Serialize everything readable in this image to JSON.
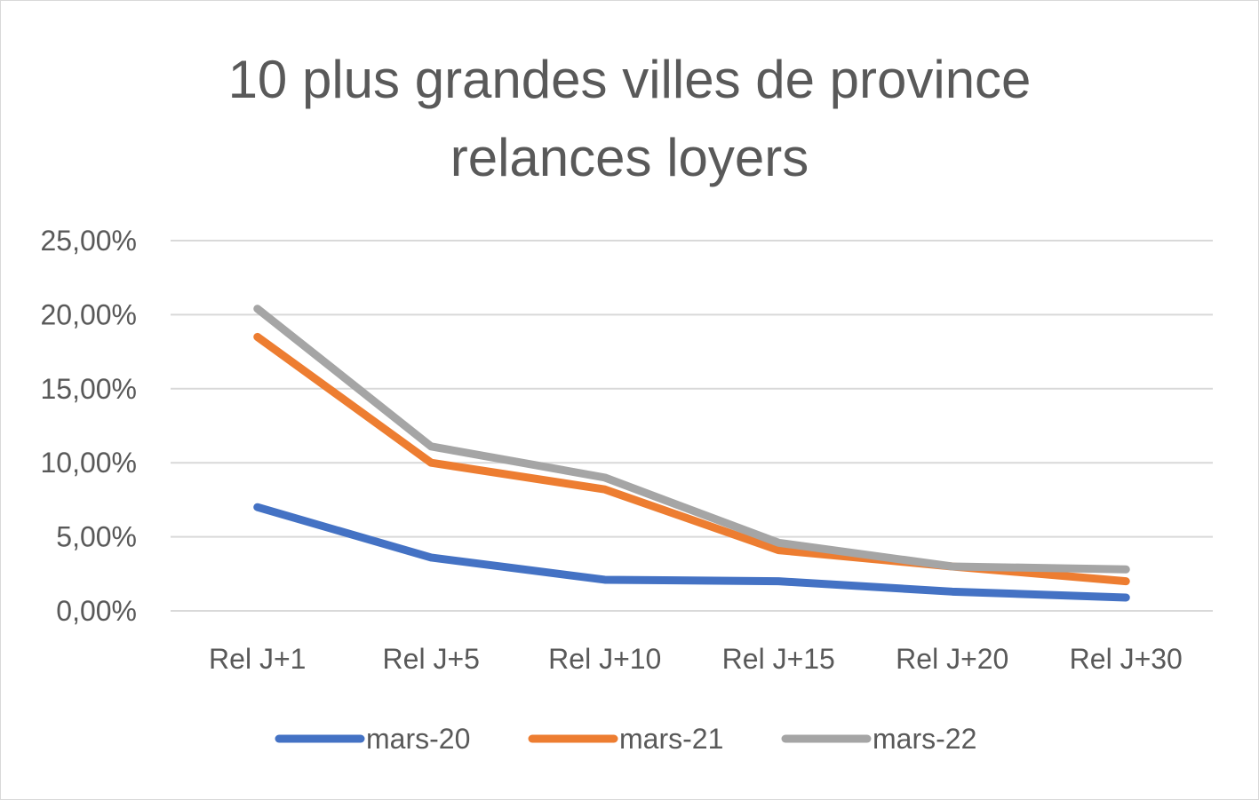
{
  "chart_data": {
    "type": "line",
    "title_lines": [
      "10 plus grandes villes de province",
      "relances loyers"
    ],
    "categories": [
      "Rel J+1",
      "Rel J+5",
      "Rel J+10",
      "Rel J+15",
      "Rel J+20",
      "Rel J+30"
    ],
    "series": [
      {
        "name": "mars-20",
        "color": "#4472C4",
        "values": [
          7.0,
          3.6,
          2.1,
          2.0,
          1.3,
          0.9
        ]
      },
      {
        "name": "mars-21",
        "color": "#ED7D31",
        "values": [
          18.5,
          10.0,
          8.2,
          4.1,
          3.0,
          2.0
        ]
      },
      {
        "name": "mars-22",
        "color": "#A5A5A5",
        "values": [
          20.4,
          11.1,
          9.0,
          4.6,
          3.0,
          2.8
        ]
      }
    ],
    "y_ticks": [
      "0,00%",
      "5,00%",
      "10,00%",
      "15,00%",
      "20,00%",
      "25,00%"
    ],
    "ylim": [
      0,
      25
    ],
    "grid": true,
    "legend_position": "bottom"
  }
}
